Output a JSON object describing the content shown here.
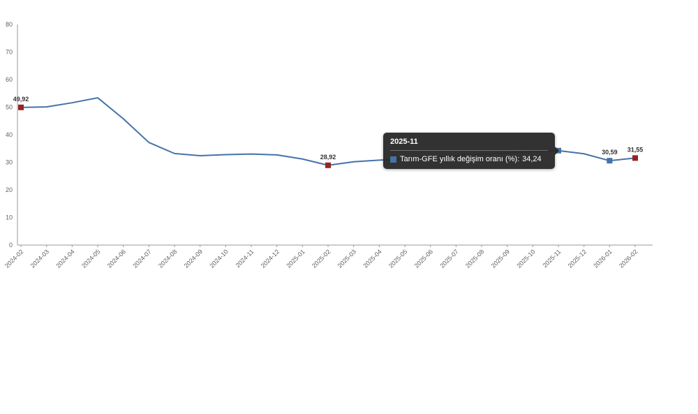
{
  "chart": {
    "background": "#ffffff"
  },
  "chart_data": {
    "type": "line",
    "title": "",
    "xlabel": "",
    "ylabel": "",
    "x": [
      "2024-02",
      "2024-03",
      "2024-04",
      "2024-05",
      "2024-06",
      "2024-07",
      "2024-08",
      "2024-09",
      "2024-10",
      "2024-11",
      "2024-12",
      "2025-01",
      "2025-02",
      "2025-03",
      "2025-04",
      "2025-05",
      "2025-06",
      "2025-07",
      "2025-08",
      "2025-09",
      "2025-10",
      "2025-11",
      "2025-12",
      "2026-01",
      "2026-02"
    ],
    "ylim": [
      0,
      80
    ],
    "yticks": [
      0,
      10,
      20,
      30,
      40,
      50,
      60,
      70,
      80
    ],
    "grid": false,
    "legend_position": "none",
    "axis_color": "#999999",
    "label_color": "#606060",
    "series": [
      {
        "name": "Tarım-GFE yıllık değişim oranı (%)",
        "color": "#4572a7",
        "values": [
          49.92,
          50.1,
          51.6,
          53.4,
          45.8,
          37.2,
          33.2,
          32.4,
          32.8,
          33.0,
          32.7,
          31.2,
          28.92,
          30.2,
          30.8,
          31.3,
          31.9,
          32.4,
          32.9,
          33.4,
          33.9,
          34.24,
          33.1,
          30.59,
          31.55
        ]
      }
    ],
    "point_markers": [
      {
        "x": "2024-02",
        "label": "49,92",
        "color": "#962422"
      },
      {
        "x": "2025-02",
        "label": "28,92",
        "color": "#962422"
      },
      {
        "x": "2025-11",
        "label": "",
        "color": "#4572a7"
      },
      {
        "x": "2026-01",
        "label": "30,59",
        "color": "#4572a7"
      },
      {
        "x": "2026-02",
        "label": "31,55",
        "color": "#962422"
      }
    ]
  },
  "tooltip": {
    "title": "2025-11",
    "series_label": "Tarım-GFE yıllık değişim oranı (%):",
    "value": "34,24",
    "swatch_color": "#4572a7"
  }
}
